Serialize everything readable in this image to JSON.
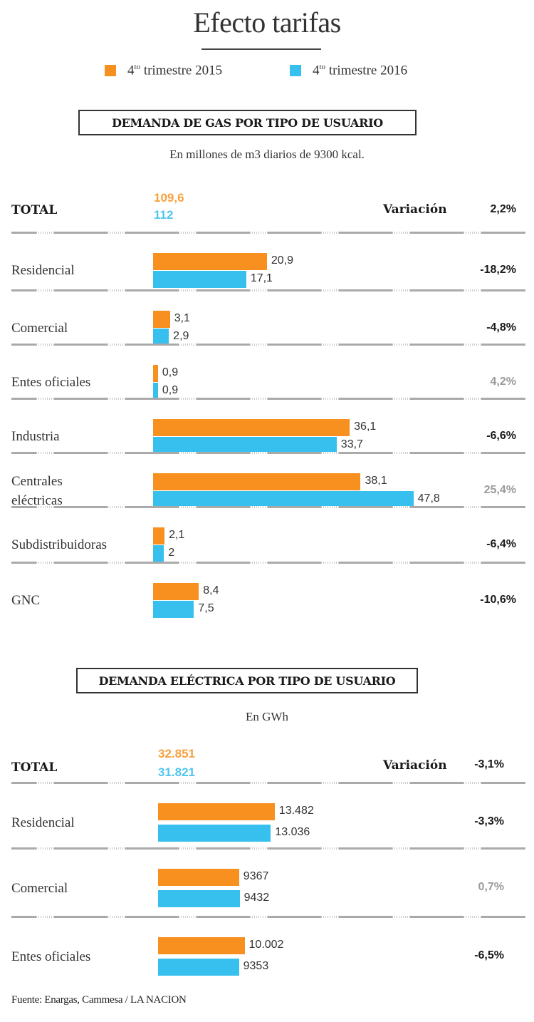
{
  "title": "Efecto tarifas",
  "legend": [
    {
      "label_prefix": "4",
      "label_sup": "to",
      "label_rest": " trimestre 2015",
      "color": "#f7901e"
    },
    {
      "label_prefix": "4",
      "label_sup": "to",
      "label_rest": " trimestre 2016",
      "color": "#37c0ee"
    }
  ],
  "colors": {
    "series_2015": "#f7901e",
    "series_2016": "#37c0ee",
    "positive_pct": "#9a9a9a",
    "negative_pct": "#1a1a1a"
  },
  "chart_data": [
    {
      "type": "bar",
      "orientation": "horizontal",
      "title": "DEMANDA DE GAS POR TIPO DE USUARIO",
      "subtitle": "En millones de m3 diarios de 9300 kcal.",
      "total_label": "TOTAL",
      "total": {
        "2015": "109,6",
        "2016": "112"
      },
      "variation_label": "Variación",
      "total_variation": "2,2%",
      "categories": [
        "Residencial",
        "Comercial",
        "Entes oficiales",
        "Industria",
        "Centrales eléctricas",
        "Subdistribuidoras",
        "GNC"
      ],
      "series": [
        {
          "name": "4to trimestre 2015",
          "values": [
            20.9,
            3.1,
            0.9,
            36.1,
            38.1,
            2.1,
            8.4
          ],
          "labels": [
            "20,9",
            "3,1",
            "0,9",
            "36,1",
            "38,1",
            "2,1",
            "8,4"
          ]
        },
        {
          "name": "4to trimestre 2016",
          "values": [
            17.1,
            2.9,
            0.9,
            33.7,
            47.8,
            2,
            7.5
          ],
          "labels": [
            "17,1",
            "2,9",
            "0,9",
            "33,7",
            "47,8",
            "2",
            "7,5"
          ]
        }
      ],
      "variations": [
        "-18,2%",
        "-4,8%",
        "4,2%",
        "-6,6%",
        "25,4%",
        "-6,4%",
        "-10,6%"
      ]
    },
    {
      "type": "bar",
      "orientation": "horizontal",
      "title": "DEMANDA ELÉCTRICA POR TIPO DE USUARIO",
      "subtitle": "En GWh",
      "total_label": "TOTAL",
      "total": {
        "2015": "32.851",
        "2016": "31.821"
      },
      "variation_label": "Variación",
      "total_variation": "-3,1%",
      "categories": [
        "Residencial",
        "Comercial",
        "Entes oficiales"
      ],
      "series": [
        {
          "name": "4to trimestre 2015",
          "values": [
            13482,
            9367,
            10002
          ],
          "labels": [
            "13.482",
            "9367",
            "10.002"
          ]
        },
        {
          "name": "4to trimestre 2016",
          "values": [
            13036,
            9432,
            9353
          ],
          "labels": [
            "13.036",
            "9432",
            "9353"
          ]
        }
      ],
      "variations": [
        "-3,3%",
        "0,7%",
        "-6,5%"
      ]
    }
  ],
  "source": "Fuente: Enargas, Cammesa / LA NACION"
}
